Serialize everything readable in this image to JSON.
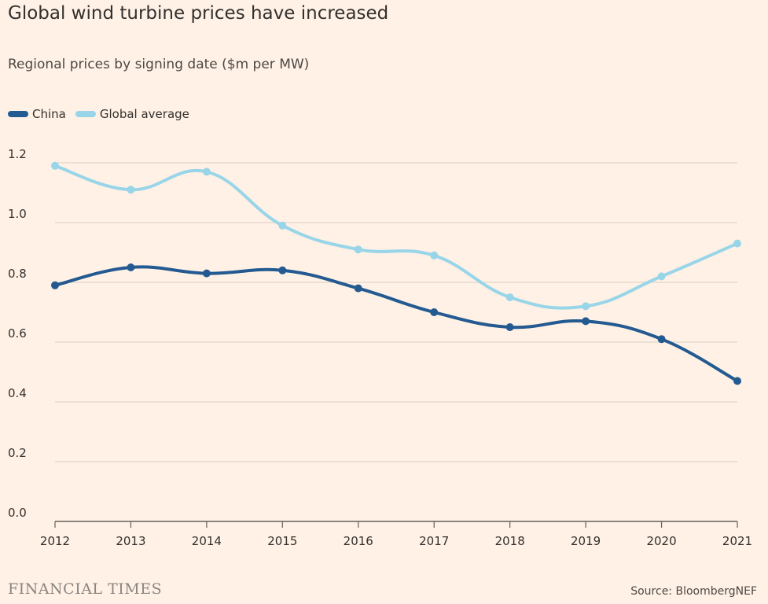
{
  "title": "Global wind turbine prices have increased",
  "subtitle": "Regional prices by signing date ($m per MW)",
  "source": "Source: BloombergNEF",
  "brand": "FINANCIAL TIMES",
  "colors": {
    "china": "#235a91",
    "global": "#99d5e9",
    "grid": "#d9cdc3",
    "background": "#fff1e5"
  },
  "chart_data": {
    "type": "line",
    "title": "Global wind turbine prices have increased",
    "subtitle": "Regional prices by signing date ($m per MW)",
    "xlabel": "",
    "ylabel": "",
    "categories": [
      "2012",
      "2013",
      "2014",
      "2015",
      "2016",
      "2017",
      "2018",
      "2019",
      "2020",
      "2021"
    ],
    "ylim": [
      0,
      1.2
    ],
    "yticks": [
      "0.0",
      "0.2",
      "0.4",
      "0.6",
      "0.8",
      "1.0",
      "1.2"
    ],
    "legend_position": "top-left",
    "series": [
      {
        "name": "China",
        "color": "#235a91",
        "values": [
          0.79,
          0.85,
          0.83,
          0.84,
          0.78,
          0.7,
          0.65,
          0.67,
          0.61,
          0.47
        ]
      },
      {
        "name": "Global average",
        "color": "#99d5e9",
        "values": [
          1.19,
          1.11,
          1.17,
          0.99,
          0.91,
          0.89,
          0.75,
          0.72,
          0.82,
          0.93
        ]
      }
    ]
  }
}
